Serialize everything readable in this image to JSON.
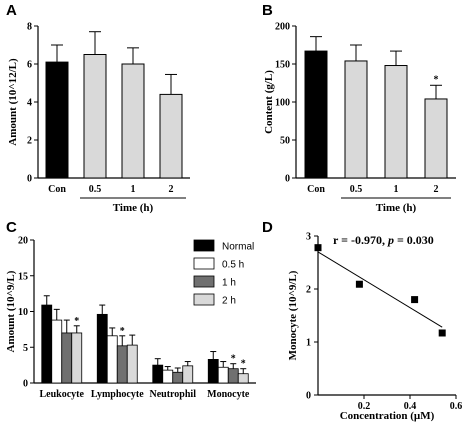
{
  "colors": {
    "black": "#000000",
    "light_gray": "#d9d9d9",
    "white": "#ffffff",
    "dark_gray": "#707070"
  },
  "chart_data": [
    {
      "panel": "A",
      "type": "bar",
      "categories": [
        "Con",
        "0.5",
        "1",
        "2"
      ],
      "values": [
        6.1,
        6.5,
        6.0,
        4.4
      ],
      "errors": [
        0.9,
        1.2,
        0.85,
        1.05
      ],
      "bar_colors": [
        "#000000",
        "#d9d9d9",
        "#d9d9d9",
        "#d9d9d9"
      ],
      "ylabel": "Amount (10^12/L)",
      "group_label": "Time (h)",
      "ylim": [
        0,
        8
      ],
      "yticks": [
        0,
        2,
        4,
        6,
        8
      ],
      "significance": [
        "",
        "",
        "",
        ""
      ]
    },
    {
      "panel": "B",
      "type": "bar",
      "categories": [
        "Con",
        "0.5",
        "1",
        "2"
      ],
      "values": [
        167,
        154,
        148,
        104
      ],
      "errors": [
        19,
        21,
        19,
        18
      ],
      "bar_colors": [
        "#000000",
        "#d9d9d9",
        "#d9d9d9",
        "#d9d9d9"
      ],
      "ylabel": "Content (g/L)",
      "group_label": "Time (h)",
      "ylim": [
        0,
        200
      ],
      "yticks": [
        0,
        50,
        100,
        150,
        200
      ],
      "significance": [
        "",
        "",
        "",
        "*"
      ]
    },
    {
      "panel": "C",
      "type": "bar",
      "categories": [
        "Leukocyte",
        "Lymphocyte",
        "Neutrophil",
        "Monocyte"
      ],
      "ylabel": "Amount (10^9/L)",
      "ylim": [
        0,
        20
      ],
      "yticks": [
        0,
        5,
        10,
        15,
        20
      ],
      "legend_position": "top-right",
      "series": [
        {
          "name": "Normal",
          "color": "#000000",
          "values": [
            10.9,
            9.6,
            2.5,
            3.3
          ],
          "errors": [
            1.3,
            1.3,
            0.9,
            1.1
          ],
          "significance": [
            "",
            "",
            "",
            ""
          ]
        },
        {
          "name": "0.5 h",
          "color": "#ffffff",
          "values": [
            8.8,
            6.6,
            1.8,
            2.2
          ],
          "errors": [
            1.5,
            1.1,
            0.5,
            0.8
          ],
          "significance": [
            "",
            "",
            "",
            ""
          ]
        },
        {
          "name": "1 h",
          "color": "#707070",
          "values": [
            7.0,
            5.2,
            1.5,
            2.0
          ],
          "errors": [
            1.8,
            1.4,
            0.6,
            0.7
          ],
          "significance": [
            "",
            "*",
            "",
            "*"
          ]
        },
        {
          "name": "2 h",
          "color": "#d9d9d9",
          "values": [
            7.0,
            5.3,
            2.4,
            1.3
          ],
          "errors": [
            1.0,
            1.4,
            0.6,
            0.7
          ],
          "significance": [
            "*",
            "",
            "",
            "*"
          ]
        }
      ]
    },
    {
      "panel": "D",
      "type": "scatter",
      "x": [
        0.0,
        0.18,
        0.42,
        0.54
      ],
      "y": [
        2.78,
        2.09,
        1.8,
        1.17
      ],
      "fit_line": {
        "x": [
          0.0,
          0.54
        ],
        "y": [
          2.7,
          1.28
        ]
      },
      "xlabel": "Concentration (µM)",
      "ylabel": "Monocyte (10^9/L)",
      "xlim": [
        0,
        0.6
      ],
      "ylim": [
        0,
        3
      ],
      "xticks": [
        0.2,
        0.4,
        0.6
      ],
      "yticks": [
        0,
        1,
        2,
        3
      ],
      "annotation": {
        "r_text": "r = -0.970, ",
        "p_symbol": "p",
        "p_value": " = 0.030"
      }
    }
  ]
}
